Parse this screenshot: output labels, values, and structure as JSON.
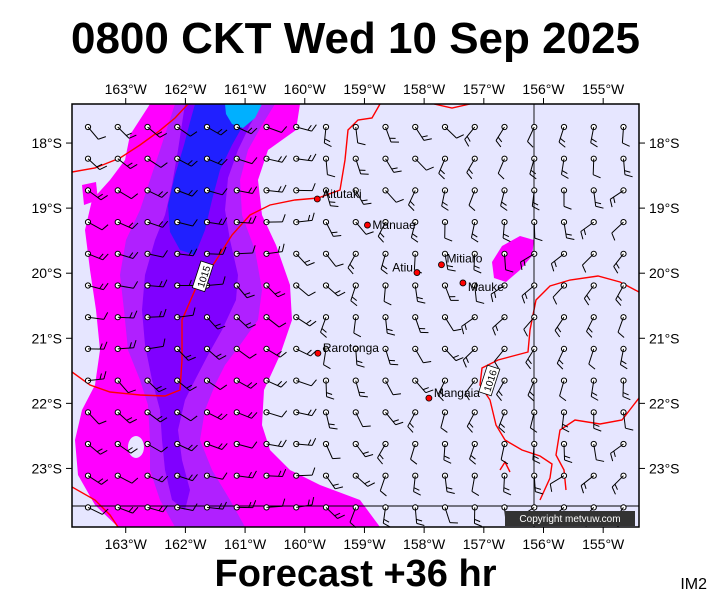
{
  "title": "0800 CKT Wed 10 Sep 2025",
  "footer": "Forecast +36 hr",
  "badge": "IM2",
  "copyright": "Copyright metvuw.com",
  "map": {
    "lon_range": [
      -163.9,
      -154.4
    ],
    "lat_range": [
      -23.9,
      -17.4
    ],
    "lon_ticks": [
      "163°W",
      "162°W",
      "161°W",
      "160°W",
      "159°W",
      "158°W",
      "157°W",
      "156°W",
      "155°W"
    ],
    "lat_ticks": [
      "18°S",
      "19°S",
      "20°S",
      "21°S",
      "22°S",
      "23°S"
    ],
    "colors": {
      "background": "#e6e6ff",
      "magenta": "#ff00ff",
      "violet": "#b020ff",
      "purple": "#8000ff",
      "blue": "#2020ff",
      "cyan": "#00b0ff",
      "isobar": "#ff0000",
      "island": "#ff0000"
    },
    "places": [
      {
        "name": "Aitutaki",
        "lon": -159.79,
        "lat": -18.86
      },
      {
        "name": "Manuae",
        "lon": -158.95,
        "lat": -19.26
      },
      {
        "name": "Atiu",
        "lon": -158.12,
        "lat": -19.99
      },
      {
        "name": "Mitiaro",
        "lon": -157.71,
        "lat": -19.87
      },
      {
        "name": "Mauke",
        "lon": -157.35,
        "lat": -20.15
      },
      {
        "name": "Rarotonga",
        "lon": -159.78,
        "lat": -21.23
      },
      {
        "name": "Mangaia",
        "lon": -157.92,
        "lat": -21.92
      }
    ],
    "isobar_labels": [
      {
        "text": "1015",
        "lon": -161.7,
        "lat": -20.05,
        "angle": -72
      },
      {
        "text": "1016",
        "lon": -156.9,
        "lat": -21.65,
        "angle": -72
      }
    ]
  }
}
